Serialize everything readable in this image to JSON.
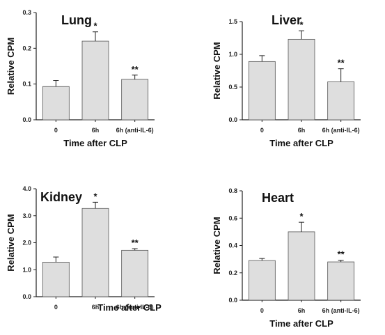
{
  "chart_data": [
    {
      "type": "bar",
      "title": "Lung",
      "xlabel": "Time after CLP",
      "ylabel": "Relative CPM",
      "categories": [
        "0",
        "6h",
        "6h (anti-IL-6)"
      ],
      "values": [
        0.093,
        0.22,
        0.113
      ],
      "errors": [
        0.017,
        0.026,
        0.012
      ],
      "annotations": [
        "",
        "*",
        "**"
      ],
      "ylim": [
        0,
        0.3
      ],
      "yticks": [
        "0.0",
        "0.1",
        "0.2",
        "0.3"
      ],
      "grid": false
    },
    {
      "type": "bar",
      "title": "Liver",
      "xlabel": "Time after CLP",
      "ylabel": "Relative CPM",
      "categories": [
        "0",
        "6h",
        "6h (anti-IL-6)"
      ],
      "values": [
        0.89,
        1.23,
        0.58
      ],
      "errors": [
        0.09,
        0.13,
        0.2
      ],
      "annotations": [
        "",
        "*",
        "**"
      ],
      "ylim": [
        0,
        1.5
      ],
      "yticks": [
        "0.0",
        "0.5",
        "1.0",
        "1.5"
      ],
      "grid": false
    },
    {
      "type": "bar",
      "title": "Kidney",
      "xlabel": "",
      "ylabel": "Relative CPM",
      "categories": [
        "0",
        "6h",
        "6h (anti-IL-6)"
      ],
      "values": [
        1.28,
        3.27,
        1.72
      ],
      "errors": [
        0.19,
        0.23,
        0.06
      ],
      "annotations": [
        "",
        "*",
        "**"
      ],
      "ylim": [
        0,
        4.0
      ],
      "yticks": [
        "0.0",
        "1.0",
        "2.0",
        "3.0",
        "4.0"
      ],
      "grid": false
    },
    {
      "type": "bar",
      "title": "Heart",
      "xlabel": "Time after CLP",
      "ylabel": "Relative CPM",
      "categories": [
        "0",
        "6h",
        "6h (anti-IL-6)"
      ],
      "values": [
        0.29,
        0.5,
        0.28
      ],
      "errors": [
        0.015,
        0.07,
        0.012
      ],
      "annotations": [
        "",
        "*",
        "**"
      ],
      "ylim": [
        0,
        0.8
      ],
      "yticks": [
        "0.0",
        "0.2",
        "0.4",
        "0.6",
        "0.8"
      ],
      "grid": false
    }
  ],
  "footer_xlabel": "Time after CLP",
  "colors": {
    "bar_fill": "#dedede",
    "bar_stroke": "#555555",
    "axis": "#222222"
  }
}
